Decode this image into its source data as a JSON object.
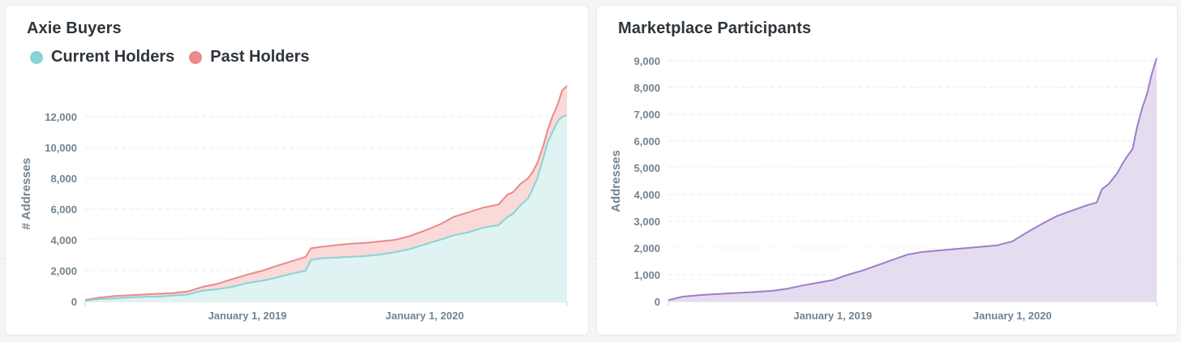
{
  "cards": [
    {
      "title": "Axie Buyers",
      "legend": [
        {
          "label": "Current Holders",
          "color": "#88d4d4"
        },
        {
          "label": "Past Holders",
          "color": "#ea8a8a"
        }
      ]
    },
    {
      "title": "Marketplace Participants"
    }
  ],
  "chart_data": [
    {
      "type": "area",
      "stacked": false,
      "title": "Axie Buyers",
      "ylabel": "# Addresses",
      "xlabel": "",
      "ylim": [
        0,
        14000
      ],
      "yticks": [
        0,
        2000,
        4000,
        6000,
        8000,
        10000,
        12000
      ],
      "ytick_labels": [
        "0",
        "2,000",
        "4,000",
        "6,000",
        "8,000",
        "10,000",
        "12,000"
      ],
      "xlim": [
        "2018-02-01",
        "2020-10-20"
      ],
      "xticks": [
        "2019-01-01",
        "2020-01-01"
      ],
      "xtick_labels": [
        "January 1, 2019",
        "January 1, 2020"
      ],
      "grid": true,
      "legend_position": "top-left",
      "x": [
        "2018-02-01",
        "2018-03-01",
        "2018-04-01",
        "2018-05-01",
        "2018-06-01",
        "2018-07-01",
        "2018-08-01",
        "2018-09-01",
        "2018-10-01",
        "2018-11-01",
        "2018-12-01",
        "2019-01-01",
        "2019-02-01",
        "2019-03-01",
        "2019-04-01",
        "2019-05-01",
        "2019-05-12",
        "2019-06-01",
        "2019-07-01",
        "2019-08-01",
        "2019-09-01",
        "2019-10-01",
        "2019-11-01",
        "2019-12-01",
        "2020-01-01",
        "2020-02-01",
        "2020-03-01",
        "2020-04-01",
        "2020-05-01",
        "2020-06-01",
        "2020-06-20",
        "2020-07-01",
        "2020-07-15",
        "2020-08-01",
        "2020-08-10",
        "2020-08-20",
        "2020-09-01",
        "2020-09-10",
        "2020-09-20",
        "2020-10-01",
        "2020-10-10",
        "2020-10-20"
      ],
      "series": [
        {
          "name": "Current Holders",
          "color": "#88d4d4",
          "values": [
            50,
            150,
            200,
            250,
            300,
            320,
            380,
            450,
            700,
            800,
            950,
            1200,
            1350,
            1550,
            1800,
            2000,
            2700,
            2800,
            2850,
            2900,
            2950,
            3050,
            3200,
            3400,
            3700,
            4000,
            4300,
            4500,
            4800,
            4950,
            5500,
            5700,
            6200,
            6700,
            7300,
            8000,
            9300,
            10300,
            11000,
            11700,
            12000,
            12100
          ],
          "fill": "#dff3f3"
        },
        {
          "name": "Past Holders",
          "color": "#ea8a8a",
          "values": [
            100,
            250,
            350,
            400,
            450,
            500,
            550,
            650,
            950,
            1150,
            1450,
            1750,
            2000,
            2300,
            2600,
            2900,
            3450,
            3550,
            3650,
            3750,
            3800,
            3900,
            4000,
            4250,
            4600,
            5000,
            5500,
            5800,
            6100,
            6300,
            6950,
            7100,
            7600,
            8000,
            8400,
            9000,
            10100,
            11100,
            12000,
            12800,
            13700,
            14000
          ],
          "fill": "#fad9d9"
        }
      ]
    },
    {
      "type": "area",
      "title": "Marketplace Participants",
      "ylabel": "Addresses",
      "xlabel": "",
      "ylim": [
        0,
        9000
      ],
      "yticks": [
        0,
        1000,
        2000,
        3000,
        4000,
        5000,
        6000,
        7000,
        8000,
        9000
      ],
      "ytick_labels": [
        "0",
        "1,000",
        "2,000",
        "3,000",
        "4,000",
        "5,000",
        "6,000",
        "7,000",
        "8,000",
        "9,000"
      ],
      "xlim": [
        "2018-02-01",
        "2020-10-20"
      ],
      "xticks": [
        "2019-01-01",
        "2020-01-01"
      ],
      "xtick_labels": [
        "January 1, 2019",
        "January 1, 2020"
      ],
      "grid": true,
      "x": [
        "2018-02-01",
        "2018-03-01",
        "2018-04-01",
        "2018-05-01",
        "2018-06-01",
        "2018-07-01",
        "2018-08-01",
        "2018-09-01",
        "2018-10-01",
        "2018-11-01",
        "2018-12-01",
        "2019-01-01",
        "2019-02-01",
        "2019-03-01",
        "2019-04-01",
        "2019-05-01",
        "2019-06-01",
        "2019-07-01",
        "2019-08-01",
        "2019-09-01",
        "2019-10-01",
        "2019-11-01",
        "2019-12-01",
        "2020-01-01",
        "2020-02-01",
        "2020-03-01",
        "2020-04-01",
        "2020-05-01",
        "2020-06-01",
        "2020-06-20",
        "2020-07-01",
        "2020-07-15",
        "2020-08-01",
        "2020-08-10",
        "2020-08-20",
        "2020-09-01",
        "2020-09-10",
        "2020-09-20",
        "2020-10-01",
        "2020-10-10",
        "2020-10-20"
      ],
      "series": [
        {
          "name": "Addresses",
          "color": "#9b7fc9",
          "fill": "#e6dcf0",
          "values": [
            50,
            180,
            230,
            270,
            300,
            330,
            360,
            400,
            480,
            600,
            700,
            800,
            1000,
            1150,
            1350,
            1550,
            1750,
            1850,
            1900,
            1950,
            2000,
            2050,
            2100,
            2250,
            2600,
            2900,
            3200,
            3400,
            3600,
            3700,
            4200,
            4400,
            4800,
            5100,
            5400,
            5700,
            6500,
            7200,
            7800,
            8500,
            9100
          ]
        }
      ]
    }
  ]
}
